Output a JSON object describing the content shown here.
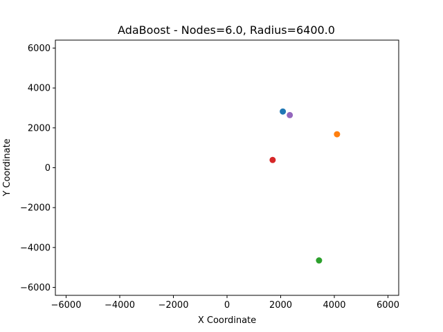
{
  "chart_data": {
    "type": "scatter",
    "title": "AdaBoost - Nodes=6.0, Radius=6400.0",
    "xlabel": "X Coordinate",
    "ylabel": "Y Coordinate",
    "xlim": [
      -6400,
      6400
    ],
    "ylim": [
      -6400,
      6400
    ],
    "xticks": [
      -6000,
      -4000,
      -2000,
      0,
      2000,
      4000,
      6000
    ],
    "yticks": [
      -6000,
      -4000,
      -2000,
      0,
      2000,
      4000,
      6000
    ],
    "grid": false,
    "points": [
      {
        "x": 2080,
        "y": 2820,
        "color": "#1f77b4"
      },
      {
        "x": 4100,
        "y": 1680,
        "color": "#ff7f0e"
      },
      {
        "x": 3430,
        "y": -4650,
        "color": "#2ca02c"
      },
      {
        "x": 1700,
        "y": 390,
        "color": "#d62728"
      },
      {
        "x": 2340,
        "y": 2640,
        "color": "#9467bd"
      }
    ]
  }
}
